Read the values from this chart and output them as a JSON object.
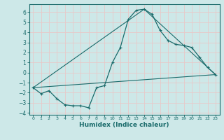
{
  "xlabel": "Humidex (Indice chaleur)",
  "background_color": "#cde8e8",
  "grid_color": "#e8c8c8",
  "line_color": "#1a6b6b",
  "xlim": [
    -0.5,
    23.5
  ],
  "ylim": [
    -4.2,
    6.8
  ],
  "xticks": [
    0,
    1,
    2,
    3,
    4,
    5,
    6,
    7,
    8,
    9,
    10,
    11,
    12,
    13,
    14,
    15,
    16,
    17,
    18,
    19,
    20,
    21,
    22,
    23
  ],
  "yticks": [
    -4,
    -3,
    -2,
    -1,
    0,
    1,
    2,
    3,
    4,
    5,
    6
  ],
  "series": [
    [
      0,
      -1.5
    ],
    [
      1,
      -2.1
    ],
    [
      2,
      -1.8
    ],
    [
      3,
      -2.6
    ],
    [
      4,
      -3.2
    ],
    [
      5,
      -3.3
    ],
    [
      6,
      -3.3
    ],
    [
      7,
      -3.5
    ],
    [
      8,
      -1.5
    ],
    [
      9,
      -1.3
    ],
    [
      10,
      1.0
    ],
    [
      11,
      2.5
    ],
    [
      12,
      5.3
    ],
    [
      13,
      6.2
    ],
    [
      14,
      6.3
    ],
    [
      15,
      5.8
    ],
    [
      16,
      4.2
    ],
    [
      17,
      3.2
    ],
    [
      18,
      2.8
    ],
    [
      19,
      2.7
    ],
    [
      20,
      2.5
    ],
    [
      21,
      1.5
    ],
    [
      22,
      0.5
    ],
    [
      23,
      -0.2
    ]
  ],
  "line_straight": [
    [
      0,
      -1.5
    ],
    [
      23,
      -0.2
    ]
  ],
  "line_upper": [
    [
      0,
      -1.5
    ],
    [
      14,
      6.3
    ],
    [
      23,
      -0.2
    ]
  ]
}
